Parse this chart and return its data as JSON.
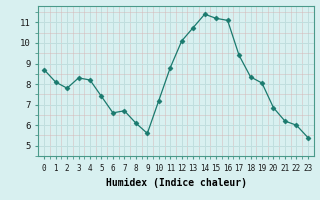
{
  "x": [
    0,
    1,
    2,
    3,
    4,
    5,
    6,
    7,
    8,
    9,
    10,
    11,
    12,
    13,
    14,
    15,
    16,
    17,
    18,
    19,
    20,
    21,
    22,
    23
  ],
  "y": [
    8.7,
    8.1,
    7.8,
    8.3,
    8.2,
    7.4,
    6.6,
    6.7,
    6.1,
    5.6,
    7.2,
    8.8,
    10.1,
    10.75,
    11.4,
    11.2,
    11.1,
    9.4,
    8.35,
    8.05,
    6.85,
    6.2,
    6.0,
    5.4
  ],
  "line_color": "#1a7a6e",
  "marker": "D",
  "marker_size": 2.5,
  "bg_color": "#d8f0f0",
  "grid_major_color": "#c0dede",
  "grid_minor_color": "#e0f0f0",
  "xlabel": "Humidex (Indice chaleur)",
  "ylim": [
    4.8,
    11.8
  ],
  "xlim": [
    -0.5,
    23.5
  ],
  "yticks": [
    5,
    6,
    7,
    8,
    9,
    10,
    11
  ],
  "xticks": [
    0,
    1,
    2,
    3,
    4,
    5,
    6,
    7,
    8,
    9,
    10,
    11,
    12,
    13,
    14,
    15,
    16,
    17,
    18,
    19,
    20,
    21,
    22,
    23
  ],
  "xtick_labels": [
    "0",
    "1",
    "2",
    "3",
    "4",
    "5",
    "6",
    "7",
    "8",
    "9",
    "10",
    "11",
    "12",
    "13",
    "14",
    "15",
    "16",
    "17",
    "18",
    "19",
    "20",
    "21",
    "22",
    "23"
  ],
  "spine_color": "#4a9a8a",
  "tick_label_color": "#1a1a1a",
  "xlabel_fontsize": 7,
  "tick_fontsize": 5.5,
  "ytick_fontsize": 6.5
}
